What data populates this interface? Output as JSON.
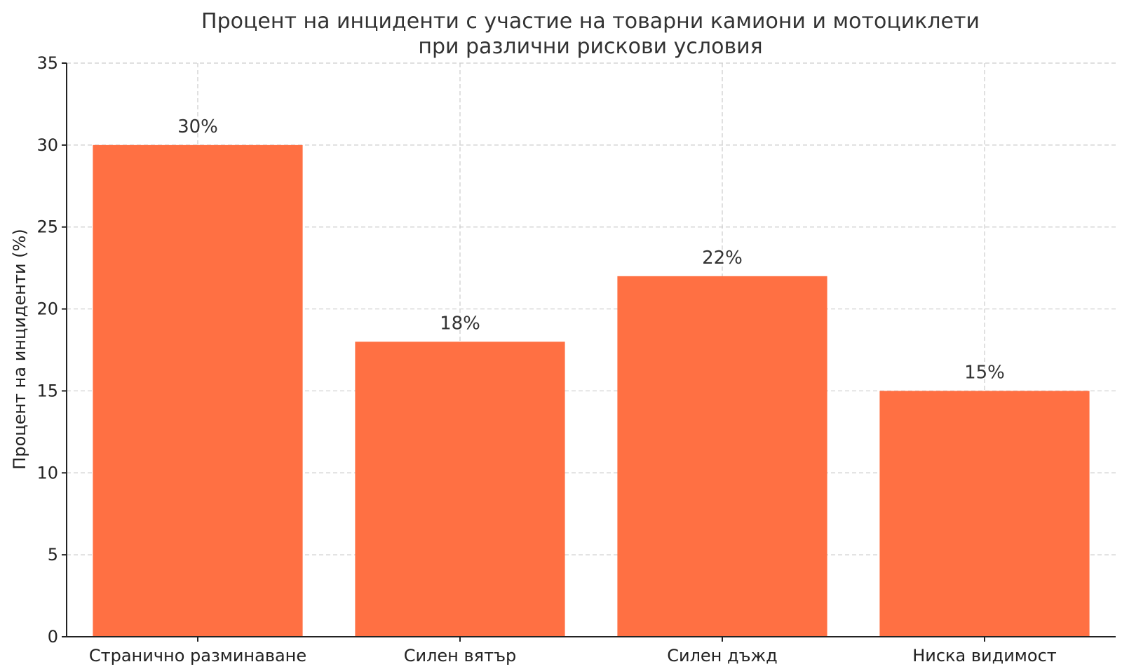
{
  "chart_data": {
    "type": "bar",
    "title": "Процент на инциденти с участие на товарни камиони и мотоциклети при различни рискови условия",
    "title_lines": [
      "Процент на инциденти с участие на товарни камиони и мотоциклети",
      "при различни рискови условия"
    ],
    "xlabel": "",
    "ylabel": "Процент на инциденти (%)",
    "categories": [
      "Странично разминаване",
      "Силен вятър",
      "Силен дъжд",
      "Ниска видимост"
    ],
    "values": [
      30,
      18,
      22,
      15
    ],
    "data_labels": [
      "30%",
      "18%",
      "22%",
      "15%"
    ],
    "ylim": [
      0,
      35
    ],
    "yticks": [
      0,
      5,
      10,
      15,
      20,
      25,
      30,
      35
    ],
    "grid": true,
    "bar_color": "#ff7043"
  }
}
